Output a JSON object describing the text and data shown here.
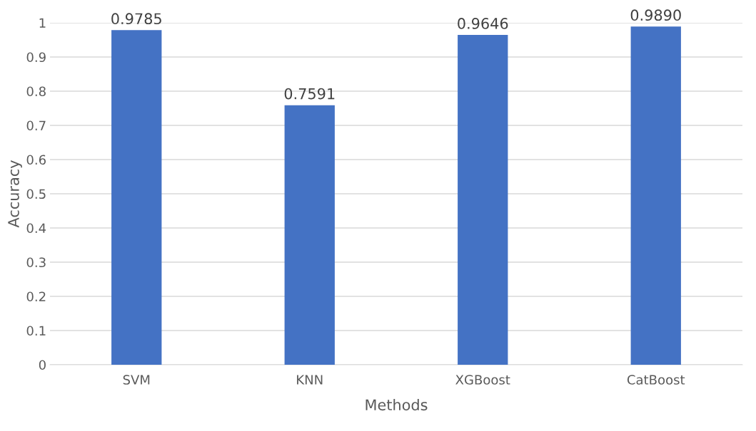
{
  "chart_data": {
    "type": "bar",
    "xlabel": "Methods",
    "ylabel": "Accuracy",
    "categories": [
      "SVM",
      "KNN",
      "XGBoost",
      "CatBoost"
    ],
    "values": [
      0.9785,
      0.7591,
      0.9646,
      0.989
    ],
    "value_labels": [
      "0.9785",
      "0.7591",
      "0.9646",
      "0.9890"
    ],
    "color": "#4472c4",
    "ylim": [
      0,
      1
    ],
    "yticks": [
      {
        "value": 0,
        "label": "0"
      },
      0.1,
      0.2,
      0.3,
      0.4,
      0.5,
      0.6,
      0.7,
      0.8,
      0.9,
      {
        "value": 1,
        "label": "1"
      }
    ],
    "grid": "y"
  }
}
